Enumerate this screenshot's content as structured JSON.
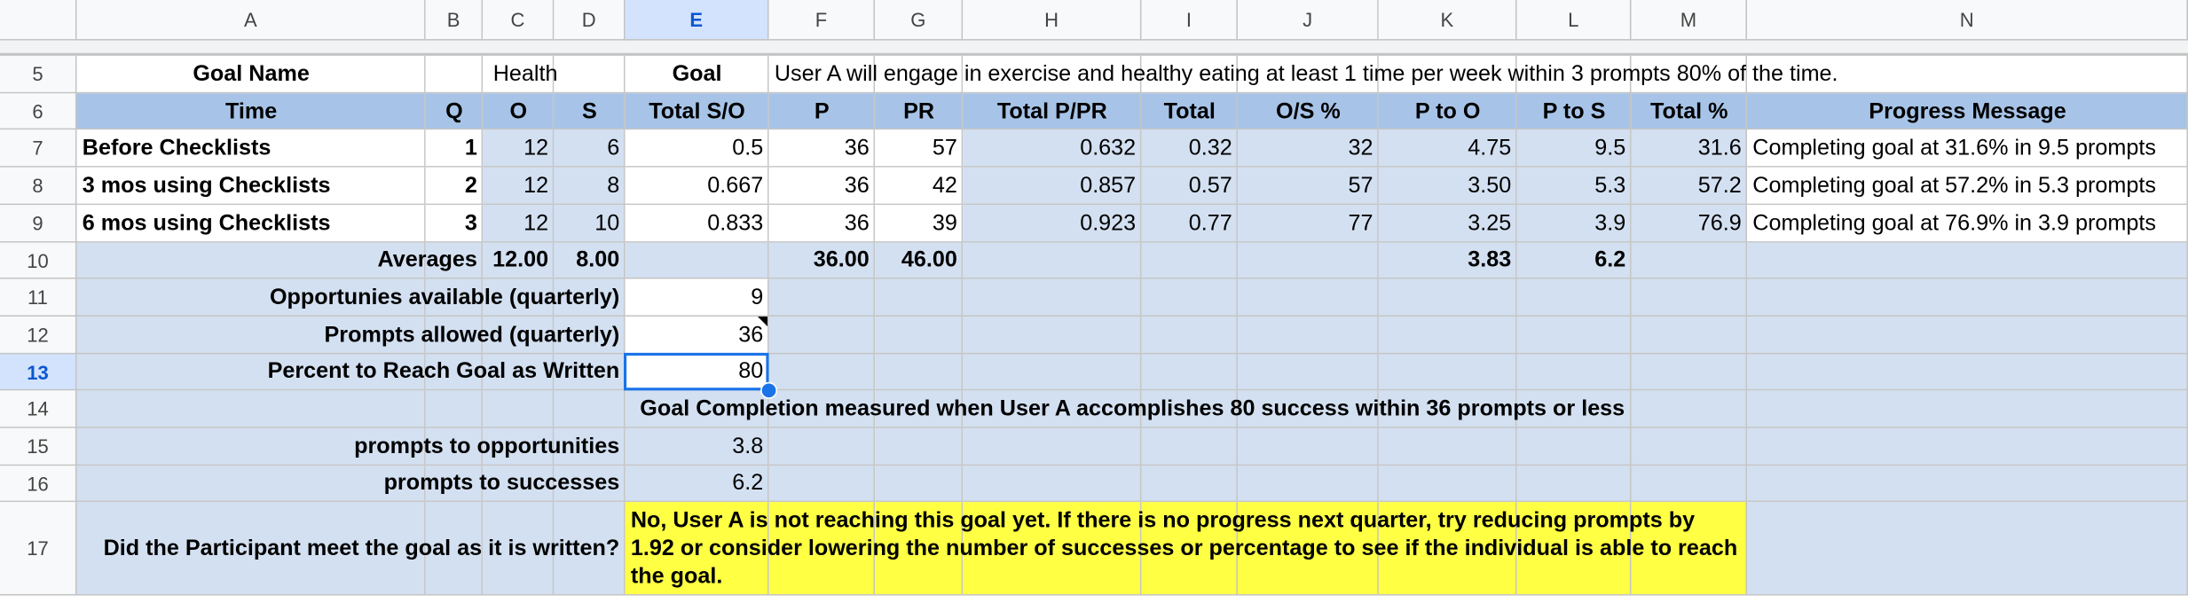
{
  "columns": [
    "A",
    "B",
    "C",
    "D",
    "E",
    "F",
    "G",
    "H",
    "I",
    "J",
    "K",
    "L",
    "M",
    "N"
  ],
  "rows": [
    {
      "number": "5",
      "cells": [
        "Goal Name",
        "Health",
        "Goal",
        "User A will engage in exercise and healthy eating at least 1 time per week within 3 prompts 80% of the time."
      ]
    },
    {
      "number": "6",
      "cells": [
        "Time",
        "Q",
        "O",
        "S",
        "Total S/O",
        "P",
        "PR",
        "Total P/PR",
        "Total",
        "O/S %",
        "P to O",
        "P to S",
        "Total %",
        "Progress Message"
      ]
    },
    {
      "number": "7",
      "cells": [
        "Before Checklists",
        "1",
        "12",
        "6",
        "0.5",
        "36",
        "57",
        "0.632",
        "0.32",
        "32",
        "4.75",
        "9.5",
        "31.6",
        "Completing goal at 31.6% in 9.5 prompts"
      ]
    },
    {
      "number": "8",
      "cells": [
        "3 mos using Checklists",
        "2",
        "12",
        "8",
        "0.667",
        "36",
        "42",
        "0.857",
        "0.57",
        "57",
        "3.50",
        "5.3",
        "57.2",
        "Completing goal at 57.2% in 5.3 prompts"
      ]
    },
    {
      "number": "9",
      "cells": [
        "6 mos using Checklists",
        "3",
        "12",
        "10",
        "0.833",
        "36",
        "39",
        "0.923",
        "0.77",
        "77",
        "3.25",
        "3.9",
        "76.9",
        "Completing goal at 76.9% in 3.9 prompts"
      ]
    },
    {
      "number": "10",
      "cells": [
        "Averages",
        "12.00",
        "8.00",
        "36.00",
        "46.00",
        "3.83",
        "6.2"
      ]
    },
    {
      "number": "11",
      "cells": [
        "Opportunies available (quarterly)",
        "9"
      ]
    },
    {
      "number": "12",
      "cells": [
        "Prompts allowed (quarterly)",
        "36"
      ]
    },
    {
      "number": "13",
      "cells": [
        "Percent to Reach Goal as Written",
        "80"
      ]
    },
    {
      "number": "14",
      "cells": [
        "Goal Completion measured when User A accomplishes 80 success within 36 prompts or less"
      ]
    },
    {
      "number": "15",
      "cells": [
        "prompts to opportunities",
        "3.8"
      ]
    },
    {
      "number": "16",
      "cells": [
        "prompts to successes",
        "6.2"
      ]
    },
    {
      "number": "17",
      "cells": [
        "Did the Participant meet the goal as it is written?",
        "No, User A is not reaching this goal yet. If there is no progress next quarter, try reducing prompts by 1.92 or consider lowering the number of successes or percentage to see if the individual is able to reach the goal."
      ]
    }
  ]
}
